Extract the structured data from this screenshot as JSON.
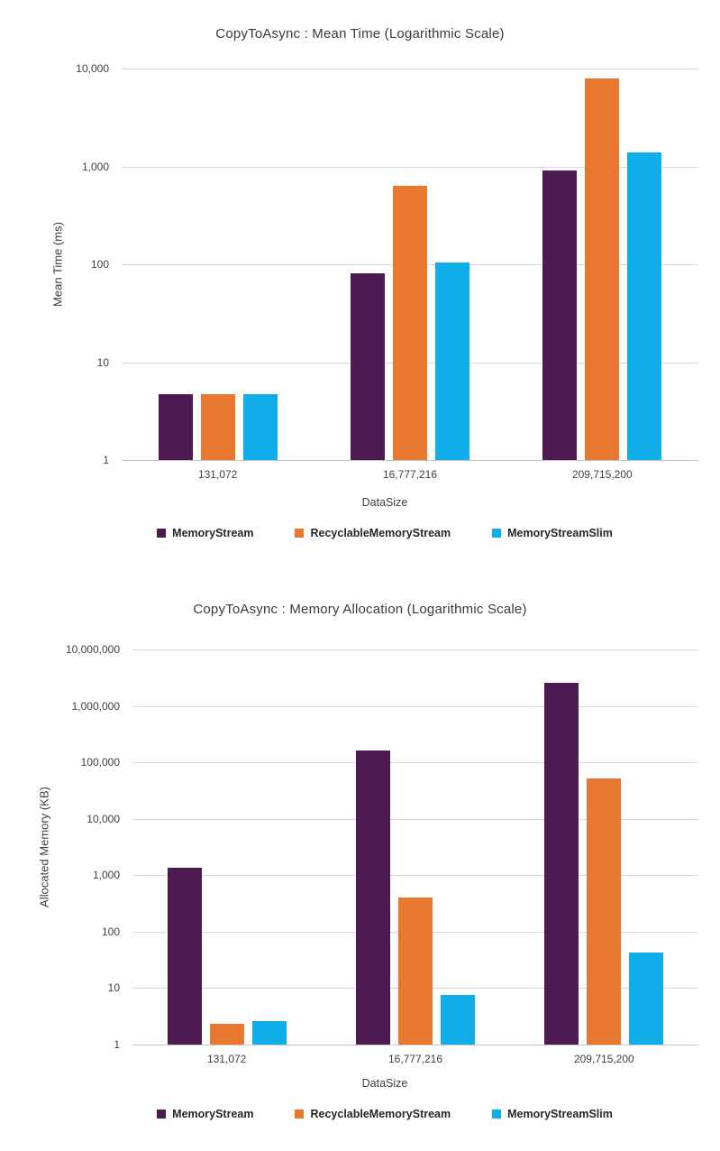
{
  "styles": {
    "background": "#ffffff",
    "grid_color": "#d9d9d9",
    "axis_line_color": "#c6c6c6",
    "tick_text_color": "#404040",
    "title_color": "#3a3a3a",
    "legend_text_color": "#262626"
  },
  "chart_data": [
    {
      "type": "bar",
      "title": "CopyToAsync : Mean Time (Logarithmic Scale)",
      "xlabel": "DataSize",
      "ylabel": "Mean Time (ms)",
      "yscale": "log10",
      "ylim": [
        1,
        10000
      ],
      "grid": "horizontal",
      "legend_position": "bottom",
      "yticks": [
        {
          "value": 10000,
          "label": "10,000"
        },
        {
          "value": 1000,
          "label": "1,000"
        },
        {
          "value": 100,
          "label": "100"
        },
        {
          "value": 10,
          "label": "10"
        },
        {
          "value": 1,
          "label": "1"
        }
      ],
      "categories": [
        "131,072",
        "16,777,216",
        "209,715,200"
      ],
      "series": [
        {
          "name": "MemoryStream",
          "color": "#4e1a52",
          "values": [
            4.7,
            81,
            910
          ]
        },
        {
          "name": "RecyclableMemoryStream",
          "color": "#e87730",
          "values": [
            4.7,
            630,
            7900
          ]
        },
        {
          "name": "MemoryStreamSlim",
          "color": "#0faee9",
          "values": [
            4.7,
            105,
            1400
          ]
        }
      ]
    },
    {
      "type": "bar",
      "title": "CopyToAsync : Memory Allocation (Logarithmic Scale)",
      "xlabel": "DataSize",
      "ylabel": "Allocated Memory (KB)",
      "yscale": "log10",
      "ylim": [
        1,
        10000000
      ],
      "grid": "horizontal",
      "legend_position": "bottom",
      "yticks": [
        {
          "value": 10000000,
          "label": "10,000,000"
        },
        {
          "value": 1000000,
          "label": "1,000,000"
        },
        {
          "value": 100000,
          "label": "100,000"
        },
        {
          "value": 10000,
          "label": "10,000"
        },
        {
          "value": 1000,
          "label": "1,000"
        },
        {
          "value": 100,
          "label": "100"
        },
        {
          "value": 10,
          "label": "10"
        },
        {
          "value": 1,
          "label": "1"
        }
      ],
      "categories": [
        "131,072",
        "16,777,216",
        "209,715,200"
      ],
      "series": [
        {
          "name": "MemoryStream",
          "color": "#4e1a52",
          "values": [
            1350,
            163000,
            2560000
          ]
        },
        {
          "name": "RecyclableMemoryStream",
          "color": "#e87730",
          "values": [
            2.3,
            400,
            52000
          ]
        },
        {
          "name": "MemoryStreamSlim",
          "color": "#0faee9",
          "values": [
            2.6,
            7.5,
            42
          ]
        }
      ]
    }
  ]
}
